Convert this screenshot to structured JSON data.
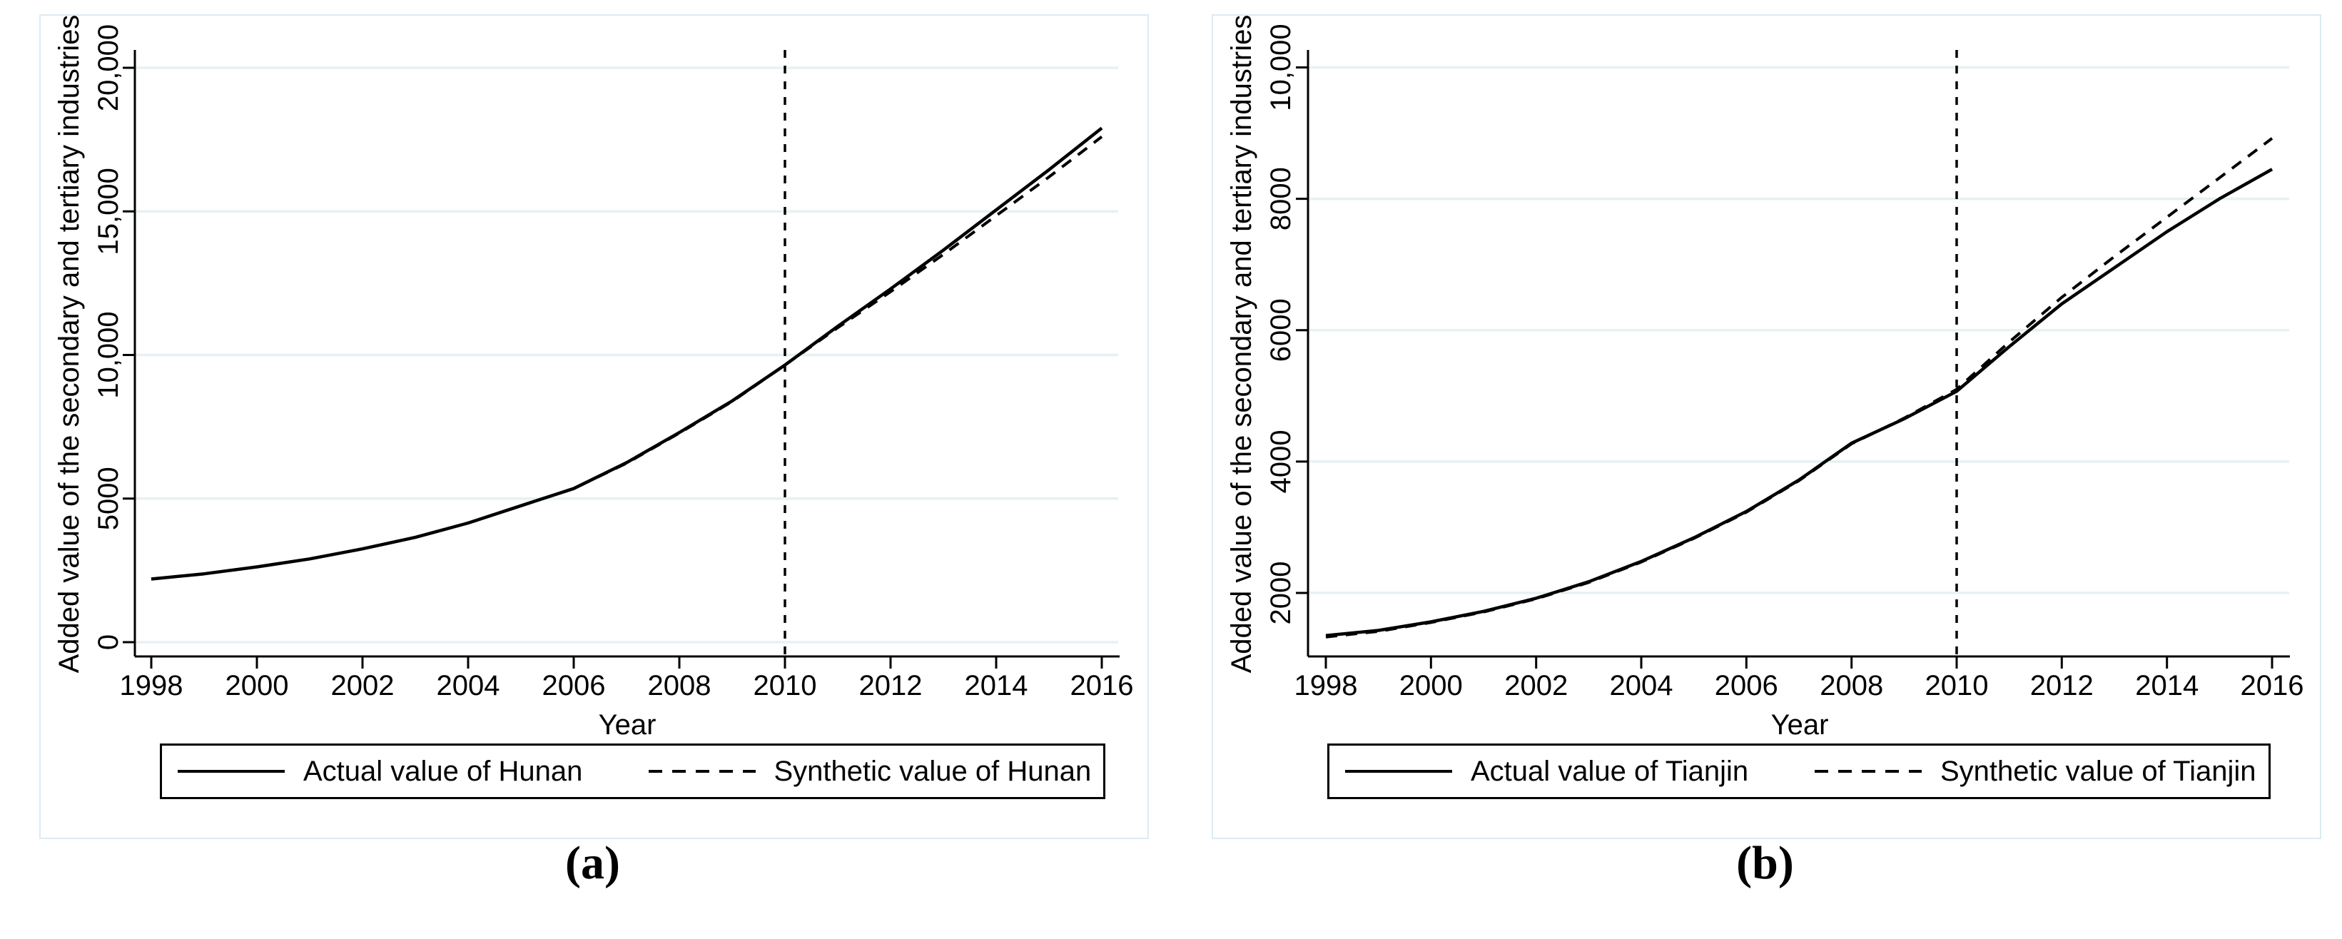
{
  "figure": {
    "panels": [
      {
        "caption": "(a)"
      },
      {
        "caption": "(b)"
      }
    ]
  },
  "chart_data": [
    {
      "type": "line",
      "title": "",
      "xlabel": "Year",
      "ylabel": "Added value of the secondary and tertiary industries",
      "xlim": [
        1998,
        2016
      ],
      "ylim": [
        0,
        20500
      ],
      "grid": true,
      "legend_position": "bottom",
      "vline_x": 2010,
      "x": [
        1998,
        1999,
        2000,
        2001,
        2002,
        2003,
        2004,
        2005,
        2006,
        2007,
        2008,
        2009,
        2010,
        2011,
        2012,
        2013,
        2014,
        2015,
        2016
      ],
      "series": [
        {
          "name": "Actual value of Hunan",
          "style": "solid",
          "values": [
            2200,
            2380,
            2620,
            2900,
            3250,
            3650,
            4150,
            4750,
            5350,
            6250,
            7300,
            8400,
            9650,
            11000,
            12300,
            13650,
            15050,
            16450,
            17900
          ]
        },
        {
          "name": "Synthetic value of Hunan",
          "style": "dashed",
          "values": [
            2200,
            2380,
            2620,
            2900,
            3250,
            3650,
            4150,
            4750,
            5350,
            6230,
            7280,
            8380,
            9650,
            10950,
            12200,
            13500,
            14850,
            16200,
            17600
          ]
        }
      ],
      "xticks": {
        "values": [
          1998,
          2000,
          2002,
          2004,
          2006,
          2008,
          2010,
          2012,
          2014,
          2016
        ],
        "labels": [
          "1998",
          "2000",
          "2002",
          "2004",
          "2006",
          "2008",
          "2010",
          "2012",
          "2014",
          "2016"
        ]
      },
      "yticks": {
        "values": [
          0,
          5000,
          10000,
          15000,
          20000
        ],
        "labels": [
          "0",
          "5000",
          "10,000",
          "15,000",
          "20,000"
        ]
      },
      "colors": {
        "line": "#000000",
        "grid": "#e7f1f3",
        "frame": "#dcebf2"
      }
    },
    {
      "type": "line",
      "title": "",
      "xlabel": "Year",
      "ylabel": "Added value of the  secondary and tertiary industries",
      "xlim": [
        1998,
        2016
      ],
      "ylim": [
        1000,
        10500
      ],
      "grid": true,
      "legend_position": "bottom",
      "vline_x": 2010,
      "x": [
        1998,
        1999,
        2000,
        2001,
        2002,
        2003,
        2004,
        2005,
        2006,
        2007,
        2008,
        2009,
        2010,
        2011,
        2012,
        2013,
        2014,
        2015,
        2016
      ],
      "series": [
        {
          "name": "Actual value of Tianjin",
          "style": "solid",
          "values": [
            1350,
            1430,
            1560,
            1720,
            1920,
            2170,
            2480,
            2840,
            3240,
            3720,
            4280,
            4650,
            5070,
            5750,
            6400,
            6950,
            7500,
            8000,
            8450
          ]
        },
        {
          "name": "Synthetic value of Tianjin",
          "style": "dashed",
          "values": [
            1330,
            1415,
            1550,
            1710,
            1910,
            2160,
            2470,
            2830,
            3230,
            3710,
            4270,
            4660,
            5100,
            5820,
            6500,
            7120,
            7720,
            8320,
            8920
          ]
        }
      ],
      "xticks": {
        "values": [
          1998,
          2000,
          2002,
          2004,
          2006,
          2008,
          2010,
          2012,
          2014,
          2016
        ],
        "labels": [
          "1998",
          "2000",
          "2002",
          "2004",
          "2006",
          "2008",
          "2010",
          "2012",
          "2014",
          "2016"
        ]
      },
      "yticks": {
        "values": [
          2000,
          4000,
          6000,
          8000,
          10000
        ],
        "labels": [
          "2000",
          "4000",
          "6000",
          "8000",
          "10,000"
        ]
      },
      "colors": {
        "line": "#000000",
        "grid": "#e7f1f3",
        "frame": "#dcebf2"
      }
    }
  ]
}
